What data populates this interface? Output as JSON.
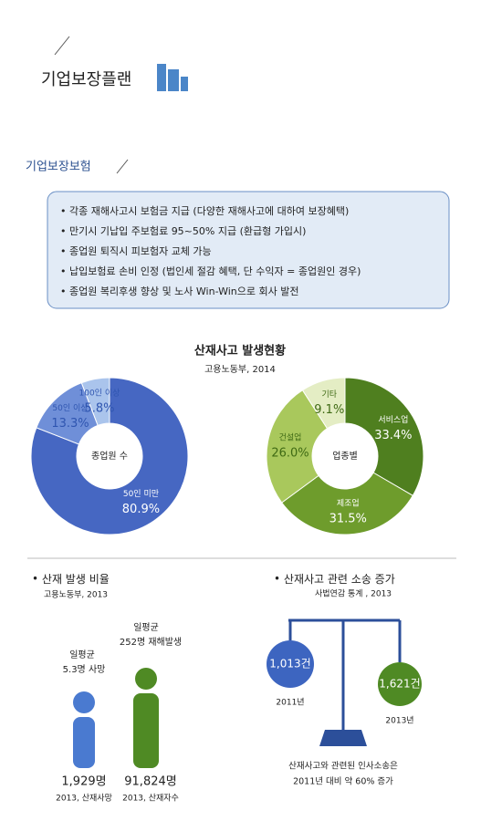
{
  "header": {
    "title": "기업보장플랜"
  },
  "section": {
    "title": "기업보장보험"
  },
  "bullets": [
    "각종 재해사고시 보험금 지급 (다양한 재해사고에 대하여 보장혜택)",
    "만기시 기납입 주보험료 95~50% 지급 (환급형 가입시)",
    "종업원 퇴직시 피보험자 교체 가능",
    "납입보험료 손비 인정 (법인세 절감 혜택, 단 수익자 = 종업원인 경우)",
    "종업원 복리후생 향상 및 노사 Win-Win으로 회사 발전"
  ],
  "accident_stats": {
    "title": "산재사고 발생현황",
    "source": "고용노동부, 2014"
  },
  "chart_data": [
    {
      "type": "pie",
      "center_label": "종업원 수",
      "categories": [
        "50인 미만",
        "50인 이상",
        "100인 이상"
      ],
      "values": [
        80.9,
        13.3,
        5.8
      ],
      "value_labels": [
        "80.9%",
        "13.3%",
        "5.8%"
      ],
      "colors": [
        "#4667c2",
        "#6f8fd8",
        "#aac4ec"
      ]
    },
    {
      "type": "pie",
      "center_label": "업종별",
      "categories": [
        "서비스업",
        "제조업",
        "건설업",
        "기타"
      ],
      "values": [
        33.4,
        31.5,
        26.0,
        9.1
      ],
      "value_labels": [
        "33.4%",
        "31.5%",
        "26.0%",
        "9.1%"
      ],
      "colors": [
        "#4f7f1f",
        "#6e9c2c",
        "#a9c85c",
        "#e4edc4"
      ]
    }
  ],
  "accident_rate": {
    "title": "산재 발생 비율",
    "source": "고용노동부, 2013",
    "daily_death": [
      "일평균",
      "5.3명 사망"
    ],
    "daily_injury": [
      "일평균",
      "252명 재해발생"
    ],
    "deaths": "1,929명",
    "deaths_caption": "2013, 산재사망",
    "injured": "91,824명",
    "injured_caption": "2013, 산재자수"
  },
  "lawsuits": {
    "title": "산재사고 관련 소송 증가",
    "source": "사법연감 통계 , 2013",
    "left": {
      "value": "1,013건",
      "year": "2011년"
    },
    "right": {
      "value": "1,621건",
      "year": "2013년"
    },
    "note": [
      "산재사고와 관련된 인사소송은",
      "2011년 대비 약 60% 증가"
    ]
  }
}
